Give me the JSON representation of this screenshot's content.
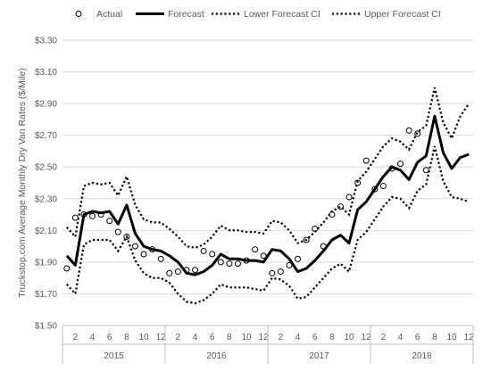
{
  "chart_data": {
    "type": "line",
    "title": "",
    "xlabel": "",
    "ylabel": "Truckstop.com Average Monthly Dry Van Rates ($/Mile)",
    "ylim": [
      1.5,
      3.3
    ],
    "y_ticks": [
      "$1.50",
      "$1.70",
      "$1.90",
      "$2.10",
      "$2.30",
      "$2.50",
      "$2.70",
      "$2.90",
      "$3.10",
      "$3.30"
    ],
    "x_tick_labels": [
      "2",
      "4",
      "6",
      "8",
      "10",
      "12",
      "2",
      "4",
      "6",
      "8",
      "10",
      "12",
      "2",
      "4",
      "6",
      "8",
      "10",
      "12",
      "2",
      "4",
      "6",
      "8",
      "10",
      "12"
    ],
    "years": [
      "2015",
      "2016",
      "2017",
      "2018"
    ],
    "grid": true,
    "legend_position": "top",
    "x": [
      "2015-01",
      "2015-02",
      "2015-03",
      "2015-04",
      "2015-05",
      "2015-06",
      "2015-07",
      "2015-08",
      "2015-09",
      "2015-10",
      "2015-11",
      "2015-12",
      "2016-01",
      "2016-02",
      "2016-03",
      "2016-04",
      "2016-05",
      "2016-06",
      "2016-07",
      "2016-08",
      "2016-09",
      "2016-10",
      "2016-11",
      "2016-12",
      "2017-01",
      "2017-02",
      "2017-03",
      "2017-04",
      "2017-05",
      "2017-06",
      "2017-07",
      "2017-08",
      "2017-09",
      "2017-10",
      "2017-11",
      "2017-12",
      "2018-01",
      "2018-02",
      "2018-03",
      "2018-04",
      "2018-05",
      "2018-06",
      "2018-07",
      "2018-08",
      "2018-09",
      "2018-10",
      "2018-11",
      "2018-12"
    ],
    "series": [
      {
        "name": "Actual",
        "style": "marker-circle",
        "color": "#000000",
        "values": [
          1.86,
          2.18,
          2.2,
          2.19,
          2.2,
          2.16,
          2.09,
          2.06,
          2.0,
          1.95,
          1.98,
          1.92,
          1.83,
          1.84,
          1.85,
          1.85,
          1.97,
          1.95,
          1.9,
          1.89,
          1.89,
          1.91,
          1.98,
          1.94,
          1.83,
          1.84,
          1.88,
          1.92,
          2.04,
          2.11,
          2.0,
          2.2,
          2.25,
          2.31,
          2.4,
          2.54,
          2.36,
          2.38,
          2.49,
          2.52,
          2.73,
          2.71,
          2.48,
          null,
          null,
          null,
          null,
          null
        ]
      },
      {
        "name": "Forecast",
        "style": "solid",
        "color": "#000000",
        "values": [
          1.94,
          1.88,
          2.2,
          2.22,
          2.21,
          2.22,
          2.14,
          2.26,
          2.08,
          2.0,
          1.98,
          1.97,
          1.94,
          1.9,
          1.83,
          1.82,
          1.84,
          1.88,
          1.95,
          1.92,
          1.92,
          1.91,
          1.91,
          1.9,
          1.98,
          1.97,
          1.92,
          1.84,
          1.86,
          1.91,
          1.97,
          2.04,
          2.07,
          2.02,
          2.23,
          2.28,
          2.36,
          2.44,
          2.5,
          2.48,
          2.42,
          2.53,
          2.57,
          2.82,
          2.59,
          2.49,
          2.56,
          2.58
        ]
      },
      {
        "name": "Lower Forecast CI",
        "style": "dotted",
        "color": "#000000",
        "values": [
          1.76,
          1.7,
          2.01,
          2.04,
          2.04,
          2.04,
          1.97,
          2.06,
          1.91,
          1.83,
          1.8,
          1.8,
          1.77,
          1.7,
          1.65,
          1.64,
          1.66,
          1.7,
          1.76,
          1.74,
          1.74,
          1.74,
          1.73,
          1.72,
          1.8,
          1.79,
          1.75,
          1.67,
          1.68,
          1.74,
          1.8,
          1.86,
          1.89,
          1.84,
          2.04,
          2.09,
          2.17,
          2.25,
          2.31,
          2.3,
          2.24,
          2.35,
          2.39,
          2.63,
          2.41,
          2.31,
          2.3,
          2.28
        ]
      },
      {
        "name": "Upper Forecast CI",
        "style": "dotted",
        "color": "#000000",
        "values": [
          2.12,
          2.06,
          2.38,
          2.4,
          2.39,
          2.4,
          2.32,
          2.44,
          2.26,
          2.17,
          2.15,
          2.15,
          2.11,
          2.06,
          2.0,
          1.99,
          2.01,
          2.06,
          2.13,
          2.1,
          2.1,
          2.09,
          2.09,
          2.08,
          2.16,
          2.15,
          2.1,
          2.02,
          2.04,
          2.09,
          2.15,
          2.22,
          2.25,
          2.2,
          2.41,
          2.47,
          2.55,
          2.63,
          2.68,
          2.66,
          2.61,
          2.72,
          2.76,
          3.0,
          2.78,
          2.68,
          2.82,
          2.9
        ]
      }
    ]
  }
}
